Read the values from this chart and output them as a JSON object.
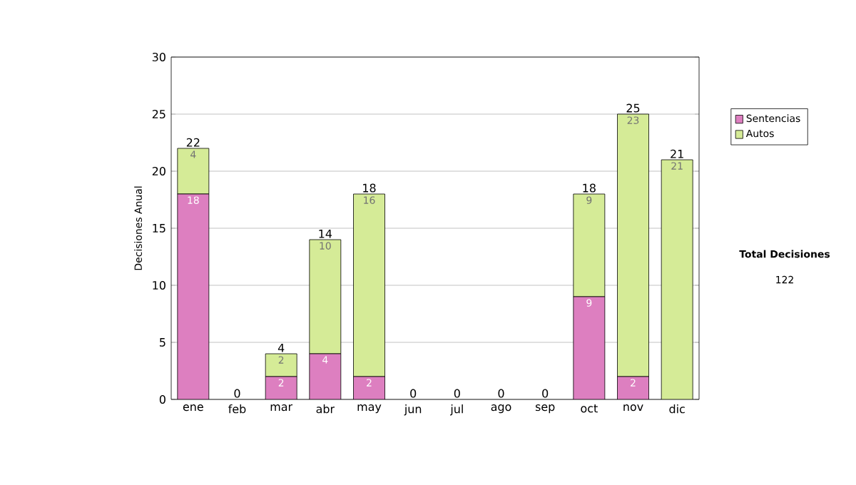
{
  "chart_data": {
    "type": "bar",
    "stacked": true,
    "ylabel": "Decisiones Anual",
    "categories": [
      "ene",
      "feb",
      "mar",
      "abr",
      "may",
      "jun",
      "jul",
      "ago",
      "sep",
      "oct",
      "nov",
      "dic"
    ],
    "series": [
      {
        "name": "Sentencias",
        "color": "#dd7fc0",
        "values": [
          18,
          0,
          2,
          4,
          2,
          0,
          0,
          0,
          0,
          9,
          2,
          0
        ],
        "value_labels": [
          "18",
          null,
          "2",
          "4",
          "2",
          null,
          null,
          null,
          null,
          "9",
          "2",
          null
        ]
      },
      {
        "name": "Autos",
        "color": "#d5eb97",
        "values": [
          4,
          0,
          2,
          10,
          16,
          0,
          0,
          0,
          0,
          9,
          23,
          21
        ],
        "value_labels": [
          "4",
          null,
          "2",
          "10",
          "16",
          null,
          null,
          null,
          null,
          "9",
          "23",
          "21"
        ]
      }
    ],
    "totals": [
      "22",
      "0",
      "4",
      "14",
      "18",
      "0",
      "0",
      "0",
      "0",
      "18",
      "25",
      "21"
    ],
    "ylim": [
      0,
      30
    ],
    "yticks": [
      0,
      5,
      10,
      15,
      20,
      25,
      30
    ],
    "grid": "y",
    "legend": "right",
    "annotations": [
      "Total Decisiones",
      "122"
    ]
  }
}
